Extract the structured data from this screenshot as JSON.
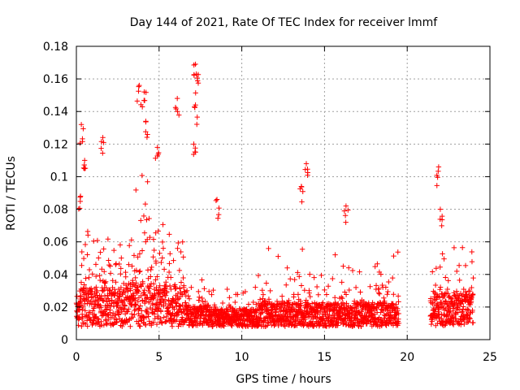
{
  "chart_data": {
    "type": "scatter",
    "title": "Day 144 of 2021, Rate Of TEC Index for receiver lmmf",
    "xlabel": "GPS time / hours",
    "ylabel": "ROTI / TECUs",
    "xlim": [
      0,
      25
    ],
    "ylim": [
      0,
      0.18
    ],
    "xticks": [
      0,
      5,
      10,
      15,
      20,
      25
    ],
    "xtick_labels": [
      "0",
      "5",
      "10",
      "15",
      "20",
      "25"
    ],
    "yticks": [
      0,
      0.02,
      0.04,
      0.06,
      0.08,
      0.1,
      0.12,
      0.14,
      0.16,
      0.18
    ],
    "ytick_labels": [
      "0",
      "0.02",
      "0.04",
      "0.06",
      "0.08",
      "0.1",
      "0.12",
      "0.14",
      "0.16",
      "0.18"
    ],
    "grid": true,
    "marker": "plus",
    "series_color": "#ff0000",
    "coverage": [
      [
        0,
        19.5
      ],
      [
        21.4,
        24
      ]
    ],
    "gap": [
      19.5,
      21.4
    ],
    "peaks": [
      {
        "x": 0.3,
        "y": 0.132
      },
      {
        "x": 0.5,
        "y": 0.11
      },
      {
        "x": 0.25,
        "y": 0.088
      },
      {
        "x": 1.6,
        "y": 0.124
      },
      {
        "x": 3.8,
        "y": 0.156
      },
      {
        "x": 4.1,
        "y": 0.152
      },
      {
        "x": 4.2,
        "y": 0.134
      },
      {
        "x": 4.9,
        "y": 0.118
      },
      {
        "x": 6.1,
        "y": 0.148
      },
      {
        "x": 7.2,
        "y": 0.169
      },
      {
        "x": 7.25,
        "y": 0.163
      },
      {
        "x": 7.2,
        "y": 0.144
      },
      {
        "x": 7.1,
        "y": 0.12
      },
      {
        "x": 8.5,
        "y": 0.086
      },
      {
        "x": 13.9,
        "y": 0.108
      },
      {
        "x": 13.6,
        "y": 0.094
      },
      {
        "x": 16.3,
        "y": 0.082
      },
      {
        "x": 21.9,
        "y": 0.106
      },
      {
        "x": 22.0,
        "y": 0.08
      }
    ]
  }
}
